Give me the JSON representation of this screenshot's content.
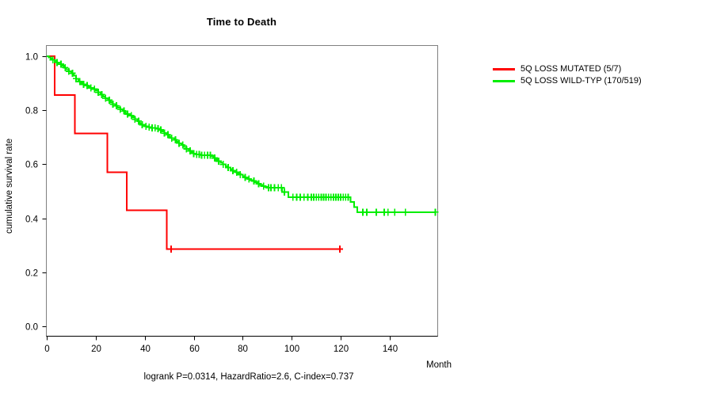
{
  "chart_data": {
    "type": "line",
    "subtype": "kaplan-meier-step",
    "title": "Time to Death",
    "xlabel": "Month",
    "ylabel": "cumulative survival rate",
    "annotation": "logrank P=0.0314, HazardRatio=2.6, C-index=0.737",
    "xlim": [
      0,
      159.5
    ],
    "ylim": [
      0,
      1.04
    ],
    "x_ticks": [
      0,
      20,
      40,
      60,
      80,
      100,
      120,
      140
    ],
    "y_ticks": [
      "0.0",
      "0.2",
      "0.4",
      "0.6",
      "0.8",
      "1.0"
    ],
    "grid": false,
    "legend_position": "right-outside",
    "box_color": "#808080",
    "axis_color": "#000000",
    "series": [
      {
        "name": "5Q LOSS MUTATED (5/7)",
        "color": "#ff0000",
        "end_time": 119.6,
        "steps": [
          [
            0,
            1.0
          ],
          [
            3.2,
            0.857
          ],
          [
            11.4,
            0.714
          ],
          [
            24.8,
            0.571
          ],
          [
            32.7,
            0.429
          ],
          [
            49,
            0.286
          ]
        ],
        "censor_times": [
          50.8,
          119.6
        ]
      },
      {
        "name": "5Q LOSS WILD-TYP (170/519)",
        "color": "#00ee00",
        "end_time": 158.7,
        "steps": [
          [
            0,
            1.0
          ],
          [
            0.8,
            0.996
          ],
          [
            1.6,
            0.992
          ],
          [
            2.4,
            0.987
          ],
          [
            3.2,
            0.982
          ],
          [
            4,
            0.977
          ],
          [
            5,
            0.971
          ],
          [
            6,
            0.965
          ],
          [
            7,
            0.958
          ],
          [
            8,
            0.951
          ],
          [
            9,
            0.944
          ],
          [
            10,
            0.937
          ],
          [
            11,
            0.928
          ],
          [
            12,
            0.917
          ],
          [
            13,
            0.906
          ],
          [
            14,
            0.901
          ],
          [
            15,
            0.896
          ],
          [
            16,
            0.891
          ],
          [
            17,
            0.886
          ],
          [
            18,
            0.882
          ],
          [
            19,
            0.878
          ],
          [
            20,
            0.873
          ],
          [
            21,
            0.866
          ],
          [
            22,
            0.858
          ],
          [
            23,
            0.851
          ],
          [
            24,
            0.844
          ],
          [
            25,
            0.837
          ],
          [
            26,
            0.83
          ],
          [
            27,
            0.823
          ],
          [
            28,
            0.816
          ],
          [
            29,
            0.809
          ],
          [
            30,
            0.803
          ],
          [
            31,
            0.797
          ],
          [
            32,
            0.791
          ],
          [
            33,
            0.786
          ],
          [
            34,
            0.78
          ],
          [
            35,
            0.774
          ],
          [
            36,
            0.767
          ],
          [
            37,
            0.76
          ],
          [
            38,
            0.752
          ],
          [
            39,
            0.746
          ],
          [
            40,
            0.741
          ],
          [
            41.5,
            0.737
          ],
          [
            43,
            0.734
          ],
          [
            44.5,
            0.731
          ],
          [
            46,
            0.727
          ],
          [
            47,
            0.721
          ],
          [
            48,
            0.715
          ],
          [
            49,
            0.709
          ],
          [
            50,
            0.703
          ],
          [
            51,
            0.697
          ],
          [
            52,
            0.69
          ],
          [
            53,
            0.684
          ],
          [
            54,
            0.678
          ],
          [
            55,
            0.671
          ],
          [
            56,
            0.664
          ],
          [
            57,
            0.657
          ],
          [
            58,
            0.65
          ],
          [
            59,
            0.644
          ],
          [
            60,
            0.64
          ],
          [
            61,
            0.637
          ],
          [
            63,
            0.634
          ],
          [
            67,
            0.63
          ],
          [
            68,
            0.623
          ],
          [
            69,
            0.617
          ],
          [
            70,
            0.611
          ],
          [
            71,
            0.605
          ],
          [
            72,
            0.599
          ],
          [
            73,
            0.593
          ],
          [
            74,
            0.588
          ],
          [
            75,
            0.582
          ],
          [
            76,
            0.576
          ],
          [
            77,
            0.571
          ],
          [
            78,
            0.566
          ],
          [
            79,
            0.561
          ],
          [
            80,
            0.556
          ],
          [
            81,
            0.551
          ],
          [
            82,
            0.546
          ],
          [
            83,
            0.541
          ],
          [
            84,
            0.538
          ],
          [
            85,
            0.533
          ],
          [
            86,
            0.528
          ],
          [
            87,
            0.523
          ],
          [
            88,
            0.519
          ],
          [
            89,
            0.516
          ],
          [
            90,
            0.513
          ],
          [
            96,
            0.497
          ],
          [
            98.6,
            0.478
          ],
          [
            124,
            0.46
          ],
          [
            125.5,
            0.442
          ],
          [
            126.8,
            0.423
          ]
        ],
        "censor_times": [
          2.5,
          4.2,
          5.8,
          7.5,
          9,
          10.5,
          12,
          13.5,
          15,
          16.5,
          18,
          19.5,
          21,
          22.5,
          24,
          25.5,
          27,
          28.5,
          30,
          31.5,
          33,
          34.5,
          36,
          37.5,
          39,
          40.5,
          41.8,
          43,
          44.2,
          45.4,
          46.6,
          48,
          49.5,
          51,
          52.5,
          54,
          55.5,
          57,
          58.5,
          60,
          61.2,
          62.2,
          63.2,
          64.4,
          65.6,
          66.8,
          68.5,
          70.2,
          72,
          74,
          76,
          77.5,
          79,
          81,
          82.5,
          84.5,
          86.5,
          88.5,
          90.5,
          91.5,
          93,
          94.5,
          95.8,
          97,
          100.5,
          102,
          103.5,
          105,
          106.5,
          108,
          109,
          110,
          111,
          112,
          113,
          114,
          115,
          116,
          117,
          118,
          119,
          120,
          121,
          122,
          123,
          129,
          130.6,
          134.5,
          137.7,
          139.3,
          142,
          146.4,
          158.6
        ]
      }
    ]
  }
}
